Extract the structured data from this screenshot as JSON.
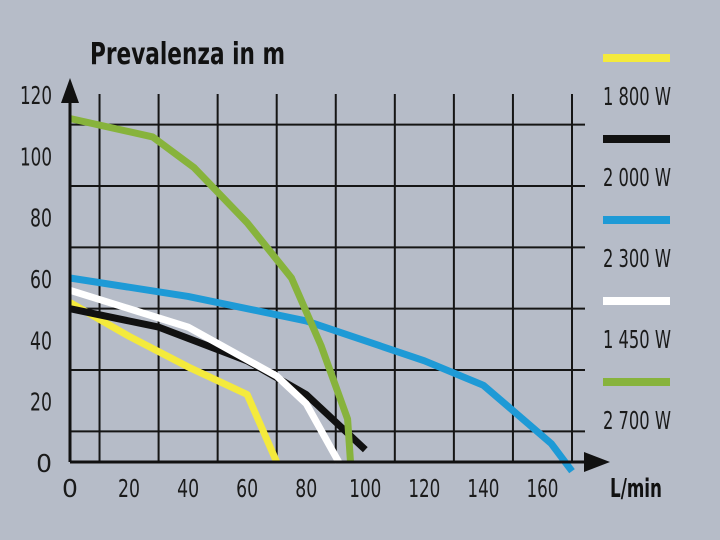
{
  "chart_data": {
    "type": "line",
    "title": "Prevalenza in m",
    "xlabel": "L/min",
    "ylabel": "",
    "xlim": [
      0,
      170
    ],
    "ylim": [
      0,
      120
    ],
    "x_ticks": [
      0,
      20,
      40,
      60,
      80,
      100,
      120,
      140,
      160
    ],
    "y_ticks": [
      0,
      20,
      40,
      60,
      80,
      100,
      120
    ],
    "grid": true,
    "legend_position": "right",
    "series": [
      {
        "name": "1 800 W",
        "color": "#f4ea3c",
        "points": [
          [
            0,
            52
          ],
          [
            20,
            41
          ],
          [
            40,
            31
          ],
          [
            60,
            22
          ],
          [
            70,
            0
          ]
        ]
      },
      {
        "name": "2 000 W",
        "color": "#111111",
        "points": [
          [
            0,
            50
          ],
          [
            30,
            44
          ],
          [
            60,
            33
          ],
          [
            80,
            22
          ],
          [
            100,
            4
          ]
        ]
      },
      {
        "name": "2 300 W",
        "color": "#1e9ad6",
        "points": [
          [
            0,
            60
          ],
          [
            40,
            54
          ],
          [
            80,
            46
          ],
          [
            120,
            33
          ],
          [
            140,
            25
          ],
          [
            163,
            6
          ],
          [
            170,
            -3
          ]
        ]
      },
      {
        "name": "1 450 W",
        "color": "#ffffff",
        "points": [
          [
            0,
            56
          ],
          [
            40,
            44
          ],
          [
            70,
            28
          ],
          [
            80,
            19
          ],
          [
            91,
            0
          ]
        ]
      },
      {
        "name": "2 700 W",
        "color": "#87b33c",
        "points": [
          [
            0,
            112
          ],
          [
            28,
            106
          ],
          [
            42,
            96
          ],
          [
            60,
            78
          ],
          [
            75,
            60
          ],
          [
            85,
            38
          ],
          [
            94,
            14
          ],
          [
            95,
            0
          ]
        ]
      }
    ]
  }
}
